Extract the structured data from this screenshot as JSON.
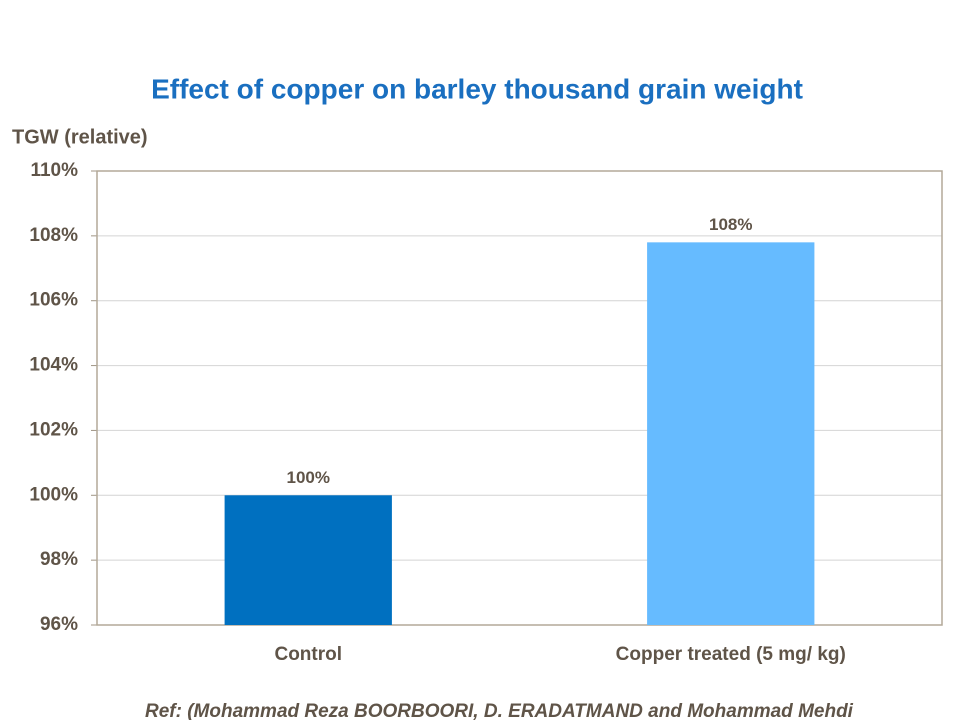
{
  "chart_data": {
    "type": "bar",
    "title": "Effect of copper on barley thousand grain weight",
    "y_label": "TGW (relative)",
    "categories": [
      "Control",
      "Copper treated (5 mg/ kg)"
    ],
    "values": [
      100,
      107.8
    ],
    "value_labels": [
      "100%",
      "108%"
    ],
    "colors": [
      "#0070c0",
      "#66bbff"
    ],
    "ylim": [
      96,
      110
    ],
    "yticks": [
      {
        "value": 96,
        "label": "96%"
      },
      {
        "value": 98,
        "label": "98%"
      },
      {
        "value": 100,
        "label": "100%"
      },
      {
        "value": 102,
        "label": "102%"
      },
      {
        "value": 104,
        "label": "104%"
      },
      {
        "value": 106,
        "label": "106%"
      },
      {
        "value": 108,
        "label": "108%"
      },
      {
        "value": 110,
        "label": "110%"
      }
    ],
    "grid": true,
    "note": "Ref: (Mohammad Reza BOORBOORI,  D. ERADATMAND and Mohammad Mehdi"
  }
}
